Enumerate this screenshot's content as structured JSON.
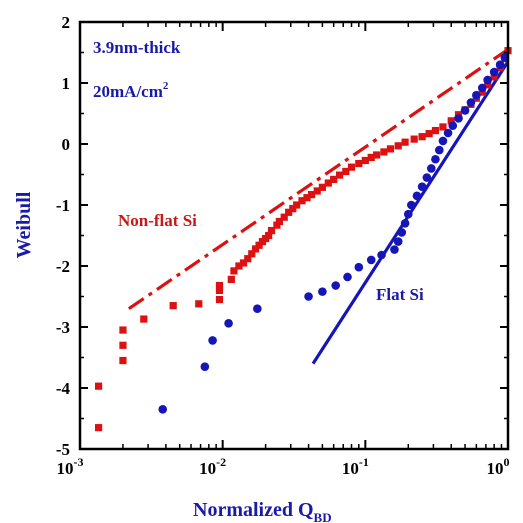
{
  "chart_data": {
    "type": "scatter",
    "xscale": "log",
    "xlim": [
      0.001,
      1
    ],
    "ylim": [
      -5,
      2
    ],
    "xlabel": "Normalized Q",
    "xlabel_sub": "BD",
    "ylabel": "Weibull",
    "x_ticks": [
      {
        "value": 0.001,
        "base": "10",
        "exp": "-3"
      },
      {
        "value": 0.01,
        "base": "10",
        "exp": "-2"
      },
      {
        "value": 0.1,
        "base": "10",
        "exp": "-1"
      },
      {
        "value": 1,
        "base": "10",
        "exp": "0"
      }
    ],
    "y_ticks": [
      {
        "value": 2,
        "label": "2"
      },
      {
        "value": 1,
        "label": "1"
      },
      {
        "value": 0,
        "label": "0"
      },
      {
        "value": -1,
        "label": "-1"
      },
      {
        "value": -2,
        "label": "-2"
      },
      {
        "value": -3,
        "label": "-3"
      },
      {
        "value": -4,
        "label": "-4"
      },
      {
        "value": -5,
        "label": "-5"
      }
    ],
    "annotations": {
      "thickness": "3.9nm-thick",
      "current_base": "20mA/cm",
      "current_exp": "2",
      "nonflat_label": "Non-flat Si",
      "flat_label": "Flat Si"
    },
    "series": [
      {
        "name": "Non-flat Si",
        "marker": "square",
        "color": "#dd1111",
        "points": [
          [
            0.00135,
            -4.65
          ],
          [
            0.00135,
            -3.97
          ],
          [
            0.002,
            -3.55
          ],
          [
            0.002,
            -3.3
          ],
          [
            0.002,
            -3.05
          ],
          [
            0.0028,
            -2.87
          ],
          [
            0.0045,
            -2.65
          ],
          [
            0.0068,
            -2.62
          ],
          [
            0.0095,
            -2.55
          ],
          [
            0.0095,
            -2.4
          ],
          [
            0.0095,
            -2.32
          ],
          [
            0.0115,
            -2.22
          ],
          [
            0.012,
            -2.08
          ],
          [
            0.013,
            -2.0
          ],
          [
            0.014,
            -1.95
          ],
          [
            0.015,
            -1.88
          ],
          [
            0.016,
            -1.8
          ],
          [
            0.017,
            -1.72
          ],
          [
            0.018,
            -1.66
          ],
          [
            0.019,
            -1.6
          ],
          [
            0.02,
            -1.55
          ],
          [
            0.021,
            -1.5
          ],
          [
            0.022,
            -1.42
          ],
          [
            0.024,
            -1.33
          ],
          [
            0.025,
            -1.27
          ],
          [
            0.027,
            -1.2
          ],
          [
            0.029,
            -1.12
          ],
          [
            0.031,
            -1.06
          ],
          [
            0.033,
            -1.0
          ],
          [
            0.036,
            -0.93
          ],
          [
            0.039,
            -0.88
          ],
          [
            0.042,
            -0.83
          ],
          [
            0.046,
            -0.77
          ],
          [
            0.05,
            -0.71
          ],
          [
            0.055,
            -0.64
          ],
          [
            0.06,
            -0.58
          ],
          [
            0.066,
            -0.51
          ],
          [
            0.073,
            -0.45
          ],
          [
            0.08,
            -0.38
          ],
          [
            0.09,
            -0.32
          ],
          [
            0.1,
            -0.27
          ],
          [
            0.11,
            -0.22
          ],
          [
            0.12,
            -0.18
          ],
          [
            0.135,
            -0.13
          ],
          [
            0.15,
            -0.08
          ],
          [
            0.17,
            -0.03
          ],
          [
            0.19,
            0.03
          ],
          [
            0.22,
            0.08
          ],
          [
            0.25,
            0.12
          ],
          [
            0.28,
            0.17
          ],
          [
            0.31,
            0.22
          ],
          [
            0.35,
            0.28
          ],
          [
            0.4,
            0.38
          ],
          [
            0.45,
            0.48
          ],
          [
            0.5,
            0.56
          ],
          [
            0.55,
            0.65
          ],
          [
            0.6,
            0.75
          ],
          [
            0.66,
            0.85
          ],
          [
            0.72,
            0.97
          ],
          [
            0.8,
            1.1
          ],
          [
            0.88,
            1.25
          ],
          [
            0.95,
            1.4
          ],
          [
            1.0,
            1.53
          ]
        ]
      },
      {
        "name": "Flat Si",
        "marker": "circle",
        "color": "#1515b8",
        "points": [
          [
            0.0038,
            -4.35
          ],
          [
            0.0075,
            -3.65
          ],
          [
            0.0085,
            -3.22
          ],
          [
            0.011,
            -2.94
          ],
          [
            0.0175,
            -2.7
          ],
          [
            0.04,
            -2.5
          ],
          [
            0.05,
            -2.42
          ],
          [
            0.062,
            -2.32
          ],
          [
            0.075,
            -2.18
          ],
          [
            0.09,
            -2.02
          ],
          [
            0.11,
            -1.9
          ],
          [
            0.13,
            -1.82
          ],
          [
            0.16,
            -1.73
          ],
          [
            0.17,
            -1.6
          ],
          [
            0.18,
            -1.45
          ],
          [
            0.19,
            -1.3
          ],
          [
            0.2,
            -1.15
          ],
          [
            0.21,
            -1.0
          ],
          [
            0.23,
            -0.85
          ],
          [
            0.25,
            -0.7
          ],
          [
            0.27,
            -0.55
          ],
          [
            0.29,
            -0.4
          ],
          [
            0.31,
            -0.25
          ],
          [
            0.33,
            -0.1
          ],
          [
            0.35,
            0.05
          ],
          [
            0.38,
            0.18
          ],
          [
            0.41,
            0.3
          ],
          [
            0.45,
            0.42
          ],
          [
            0.5,
            0.55
          ],
          [
            0.55,
            0.68
          ],
          [
            0.6,
            0.8
          ],
          [
            0.66,
            0.92
          ],
          [
            0.72,
            1.05
          ],
          [
            0.8,
            1.18
          ],
          [
            0.88,
            1.3
          ],
          [
            0.95,
            1.42
          ]
        ]
      }
    ],
    "fit_lines": [
      {
        "series": "Non-flat Si",
        "style": "dash-dot",
        "color": "#dd1111",
        "points": [
          [
            0.0022,
            -2.7
          ],
          [
            1.0,
            1.55
          ]
        ]
      },
      {
        "series": "Flat Si",
        "style": "solid",
        "color": "#1515b8",
        "points": [
          [
            0.043,
            -3.6
          ],
          [
            1.0,
            1.35
          ]
        ]
      }
    ]
  }
}
